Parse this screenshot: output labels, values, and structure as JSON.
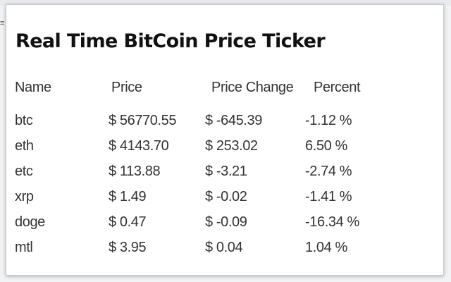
{
  "popup": {
    "title": "Real Time BitCoin Price Ticker"
  },
  "browser_edge_glyph": "≡",
  "table": {
    "headers": {
      "name": "Name",
      "price": "Price",
      "change": "Price Change",
      "percent": "Percent"
    },
    "rows": [
      {
        "name": "btc",
        "price": "$ 56770.55",
        "change": "$ -645.39",
        "percent": "-1.12 %"
      },
      {
        "name": "eth",
        "price": "$ 4143.70",
        "change": "$ 253.02",
        "percent": "6.50 %"
      },
      {
        "name": "etc",
        "price": "$ 113.88",
        "change": "$ -3.21",
        "percent": "-2.74 %"
      },
      {
        "name": "xrp",
        "price": "$ 1.49",
        "change": "$ -0.02",
        "percent": "-1.41 %"
      },
      {
        "name": "doge",
        "price": "$ 0.47",
        "change": "$ -0.09",
        "percent": "-16.34 %"
      },
      {
        "name": "mtl",
        "price": "$ 3.95",
        "change": "$ 0.04",
        "percent": "1.04 %"
      }
    ]
  }
}
